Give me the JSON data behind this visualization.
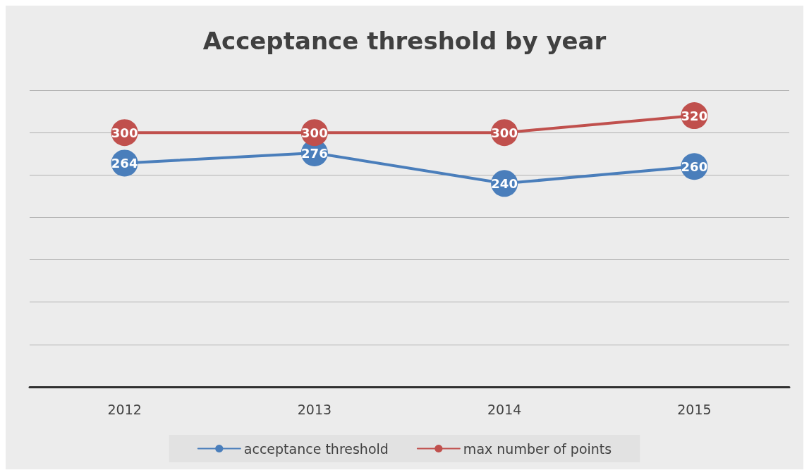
{
  "chart_data": {
    "type": "line",
    "title": "Acceptance threshold by year",
    "categories": [
      "2012",
      "2013",
      "2014",
      "2015"
    ],
    "series": [
      {
        "name": "acceptance threshold",
        "color": "#4a7ebb",
        "values": [
          264,
          276,
          240,
          260
        ]
      },
      {
        "name": "max number of points",
        "color": "#c0504d",
        "values": [
          300,
          300,
          300,
          320
        ]
      }
    ],
    "ylim": [
      0,
      350
    ],
    "yticks": [
      {
        "value": 0,
        "label": null
      },
      {
        "value": 50,
        "label": null
      },
      {
        "value": 100,
        "label": null
      },
      {
        "value": 150,
        "label": null
      },
      {
        "value": 200,
        "label": null
      },
      {
        "value": 250,
        "label": null
      },
      {
        "value": 300,
        "label": null
      },
      {
        "value": 350,
        "label": null
      }
    ],
    "tick_labels": "x",
    "grid": "y",
    "legend": "bottom",
    "marker": "circle",
    "line_style": "solid",
    "data_labels": true
  }
}
